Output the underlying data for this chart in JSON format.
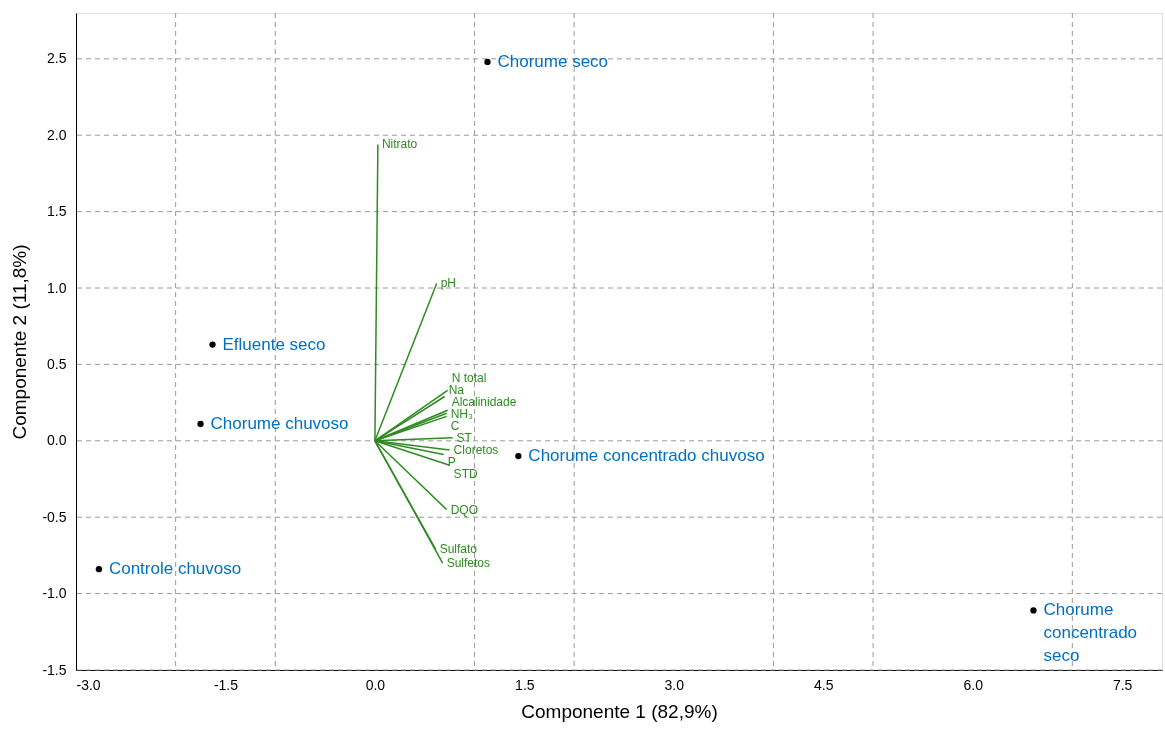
{
  "chart_data": {
    "type": "scatter",
    "xlabel": "Componente 1 (82,9%)",
    "ylabel": "Componente 2 (11,8%)",
    "xlim": [
      -3,
      7.9
    ],
    "ylim": [
      -1.5,
      2.8
    ],
    "xticks": [
      {
        "value": -3,
        "label": "-3.0"
      },
      {
        "value": -2,
        "label": null
      },
      {
        "value": -1.5,
        "label": "-1.5"
      },
      {
        "value": -1,
        "label": null
      },
      {
        "value": 0,
        "label": "0.0"
      },
      {
        "value": 1,
        "label": null
      },
      {
        "value": 1.5,
        "label": "1.5"
      },
      {
        "value": 2,
        "label": null
      },
      {
        "value": 3,
        "label": "3.0"
      },
      {
        "value": 4,
        "label": null
      },
      {
        "value": 4.5,
        "label": "4.5"
      },
      {
        "value": 5,
        "label": null
      },
      {
        "value": 6,
        "label": "6.0"
      },
      {
        "value": 7,
        "label": null
      },
      {
        "value": 7.5,
        "label": "7.5"
      }
    ],
    "yticks": [
      {
        "value": -1.5,
        "label": "-1.5"
      },
      {
        "value": -1,
        "label": "-1.0"
      },
      {
        "value": -0.5,
        "label": "-0.5"
      },
      {
        "value": 0,
        "label": "0.0"
      },
      {
        "value": 0.5,
        "label": "0.5"
      },
      {
        "value": 1,
        "label": "1.0"
      },
      {
        "value": 1.5,
        "label": "1.5"
      },
      {
        "value": 2,
        "label": "2.0"
      },
      {
        "value": 2.5,
        "label": "2.5"
      }
    ],
    "grid": true,
    "marker": "circle",
    "series": [
      {
        "color": "#000000",
        "x": [
          1.13,
          -1.63,
          -1.75,
          -2.77,
          1.44,
          6.61
        ],
        "values": [
          2.48,
          0.63,
          0.11,
          -0.84,
          -0.1,
          -1.11
        ]
      },
      {
        "type": "line",
        "marker": "none",
        "name": "Nitrato",
        "color": "#2e8b22",
        "x": [
          0,
          0.03
        ],
        "values": [
          0,
          1.94
        ]
      },
      {
        "type": "line",
        "marker": "none",
        "name": "pH",
        "color": "#2e8b22",
        "x": [
          0,
          0.62
        ],
        "values": [
          0,
          1.03
        ]
      },
      {
        "type": "line",
        "marker": "none",
        "name": "Alcalinidade",
        "color": "#2e8b22",
        "x": [
          0,
          0.73
        ],
        "values": [
          0,
          0.2
        ]
      },
      {
        "type": "line",
        "marker": "none",
        "name": "N total",
        "color": "#2e8b22",
        "x": [
          0,
          0.73
        ],
        "values": [
          0,
          0.33
        ]
      },
      {
        "type": "line",
        "marker": "none",
        "name": "Na",
        "color": "#2e8b22",
        "x": [
          0,
          0.7
        ],
        "values": [
          0,
          0.29
        ]
      },
      {
        "type": "line",
        "marker": "none",
        "name": "NH₃",
        "color": "#2e8b22",
        "x": [
          0,
          0.72
        ],
        "values": [
          0,
          0.18
        ]
      },
      {
        "type": "line",
        "marker": "none",
        "name": "C",
        "color": "#2e8b22",
        "x": [
          0,
          0.72
        ],
        "values": [
          0,
          0.16
        ]
      },
      {
        "type": "line",
        "marker": "none",
        "name": "ST",
        "color": "#2e8b22",
        "x": [
          0,
          0.78
        ],
        "values": [
          0,
          0.02
        ]
      },
      {
        "type": "line",
        "marker": "none",
        "name": "Cloretos",
        "color": "#2e8b22",
        "x": [
          0,
          0.75
        ],
        "values": [
          0,
          -0.06
        ]
      },
      {
        "type": "line",
        "marker": "none",
        "name": "P",
        "color": "#2e8b22",
        "x": [
          0,
          0.69
        ],
        "values": [
          0,
          -0.09
        ]
      },
      {
        "type": "line",
        "marker": "none",
        "name": "STD",
        "color": "#2e8b22",
        "x": [
          0,
          0.75
        ],
        "values": [
          0,
          -0.16
        ]
      },
      {
        "type": "line",
        "marker": "none",
        "name": "DQO",
        "color": "#2e8b22",
        "x": [
          0,
          0.72
        ],
        "values": [
          0,
          -0.45
        ]
      },
      {
        "type": "line",
        "marker": "none",
        "name": "Sulfato",
        "color": "#2e8b22",
        "x": [
          0,
          0.61
        ],
        "values": [
          0,
          -0.71
        ]
      },
      {
        "type": "line",
        "marker": "none",
        "name": "Sulfetos",
        "color": "#2e8b22",
        "x": [
          0,
          0.68
        ],
        "values": [
          0,
          -0.8
        ]
      }
    ],
    "annotations": [
      {
        "text": "Chorume seco",
        "x": 1.13,
        "y": 2.48
      },
      {
        "text": "Efluente seco",
        "x": -1.63,
        "y": 0.63
      },
      {
        "text": "Chorume chuvoso",
        "x": -1.75,
        "y": 0.11
      },
      {
        "text": "Controle chuvoso",
        "x": -2.77,
        "y": -0.84
      },
      {
        "text": "Chorume concentrado chuvoso",
        "x": 1.44,
        "y": -0.1
      },
      {
        "text": "Chorume\nconcentrado\nseco",
        "x": 6.61,
        "y": -1.11
      }
    ]
  }
}
